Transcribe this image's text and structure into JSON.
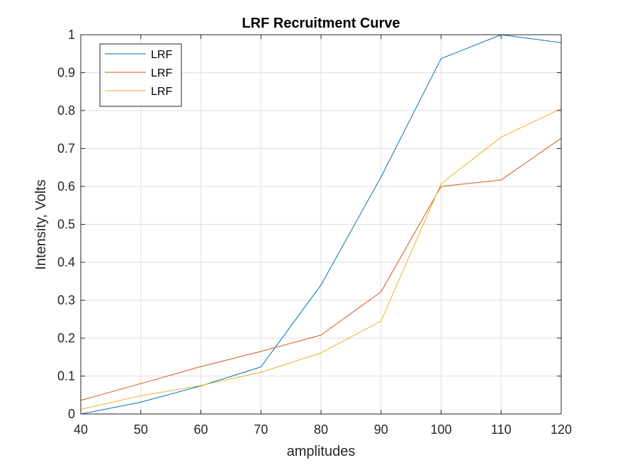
{
  "chart_data": {
    "type": "line",
    "title": "LRF Recruitment Curve",
    "xlabel": "amplitudes",
    "ylabel": "Intensity, Volts",
    "x": [
      40,
      50,
      60,
      70,
      80,
      90,
      100,
      110,
      120
    ],
    "xlim": [
      40,
      120
    ],
    "ylim": [
      0,
      1
    ],
    "xticks": [
      40,
      50,
      60,
      70,
      80,
      90,
      100,
      110,
      120
    ],
    "xtick_labels": [
      "40",
      "50",
      "60",
      "70",
      "80",
      "90",
      "100",
      "110",
      "120"
    ],
    "yticks": [
      0,
      0.1,
      0.2,
      0.3,
      0.4,
      0.5,
      0.6,
      0.7,
      0.8,
      0.9,
      1
    ],
    "ytick_labels": [
      "0",
      "0.1",
      "0.2",
      "0.3",
      "0.4",
      "0.5",
      "0.6",
      "0.7",
      "0.8",
      "0.9",
      "1"
    ],
    "grid": true,
    "legend_position": "top-left",
    "series": [
      {
        "name": "LRF",
        "color": "#0072bd",
        "values": [
          0.0,
          0.031,
          0.074,
          0.124,
          0.34,
          0.625,
          0.937,
          1.0,
          0.979
        ]
      },
      {
        "name": "LRF",
        "color": "#d95319",
        "values": [
          0.036,
          0.08,
          0.125,
          0.165,
          0.208,
          0.322,
          0.6,
          0.617,
          0.727
        ]
      },
      {
        "name": "LRF",
        "color": "#edb120",
        "values": [
          0.012,
          0.048,
          0.075,
          0.11,
          0.161,
          0.245,
          0.607,
          0.73,
          0.805
        ]
      }
    ]
  }
}
